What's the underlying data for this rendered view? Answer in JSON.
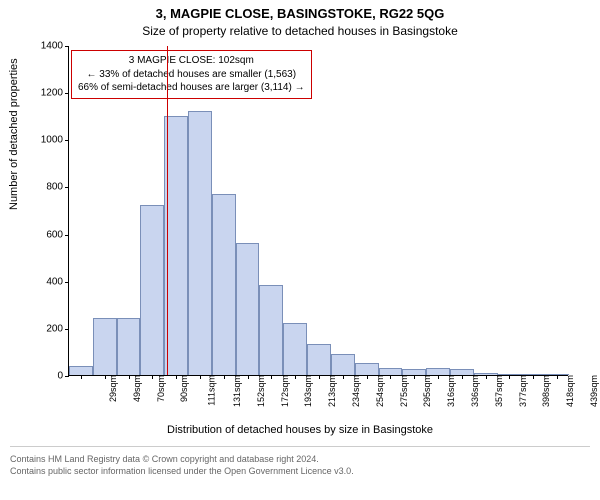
{
  "title_main": "3, MAGPIE CLOSE, BASINGSTOKE, RG22 5QG",
  "title_sub": "Size of property relative to detached houses in Basingstoke",
  "ylabel": "Number of detached properties",
  "xlabel": "Distribution of detached houses by size in Basingstoke",
  "chart": {
    "type": "histogram",
    "ylim": [
      0,
      1400
    ],
    "ytick_step": 200,
    "bar_fill": "#c9d5ef",
    "bar_stroke": "#7a8fb8",
    "bar_width_ratio": 1.0,
    "background_color": "#ffffff",
    "bins": [
      {
        "label": "29sqm",
        "value": 40
      },
      {
        "label": "49sqm",
        "value": 240
      },
      {
        "label": "70sqm",
        "value": 240
      },
      {
        "label": "90sqm",
        "value": 720
      },
      {
        "label": "111sqm",
        "value": 1100
      },
      {
        "label": "131sqm",
        "value": 1120
      },
      {
        "label": "152sqm",
        "value": 770
      },
      {
        "label": "172sqm",
        "value": 560
      },
      {
        "label": "193sqm",
        "value": 380
      },
      {
        "label": "213sqm",
        "value": 220
      },
      {
        "label": "234sqm",
        "value": 130
      },
      {
        "label": "254sqm",
        "value": 90
      },
      {
        "label": "275sqm",
        "value": 50
      },
      {
        "label": "295sqm",
        "value": 30
      },
      {
        "label": "316sqm",
        "value": 25
      },
      {
        "label": "336sqm",
        "value": 30
      },
      {
        "label": "357sqm",
        "value": 25
      },
      {
        "label": "377sqm",
        "value": 8
      },
      {
        "label": "398sqm",
        "value": 6
      },
      {
        "label": "418sqm",
        "value": 6
      },
      {
        "label": "439sqm",
        "value": 4
      }
    ],
    "reference_line": {
      "bin_index_position": 3.6,
      "color": "#cc0000",
      "width": 1
    },
    "callout": {
      "border_color": "#cc0000",
      "border_width": 1,
      "background": "#ffffff",
      "line1": "3 MAGPIE CLOSE: 102sqm",
      "line2": "← 33% of detached houses are smaller (1,563)",
      "line3": "66% of semi-detached houses are larger (3,114) →"
    }
  },
  "footer_line1": "Contains HM Land Registry data © Crown copyright and database right 2024.",
  "footer_line2": "Contains public sector information licensed under the Open Government Licence v3.0."
}
